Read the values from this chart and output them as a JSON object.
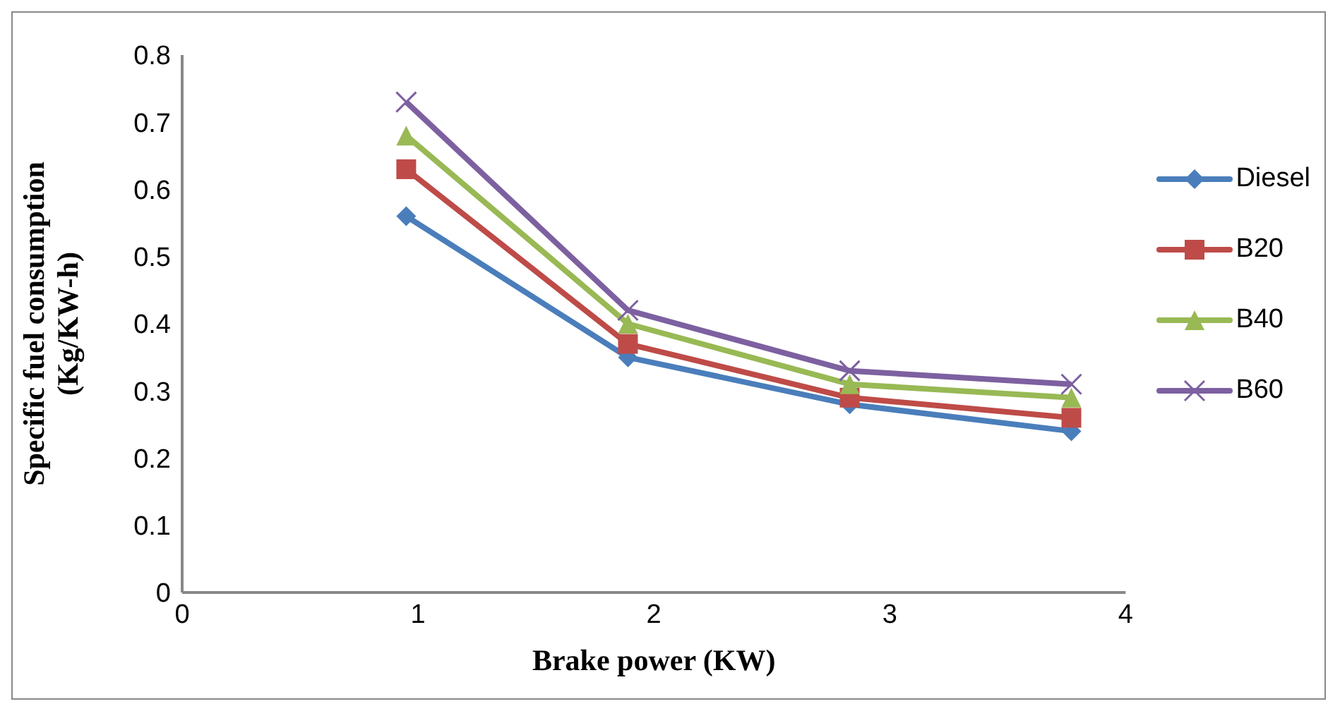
{
  "chart_data": {
    "type": "line",
    "xlabel": "Brake power (KW)",
    "ylabel": "Specific fuel consumption\n(Kg/KW-h)",
    "x": [
      0.95,
      1.89,
      2.83,
      3.77
    ],
    "series": [
      {
        "name": "Diesel",
        "color": "#4a7ebb",
        "marker": "diamond",
        "values": [
          0.56,
          0.35,
          0.28,
          0.24
        ]
      },
      {
        "name": "B20",
        "color": "#be4b48",
        "marker": "square",
        "values": [
          0.63,
          0.37,
          0.29,
          0.26
        ]
      },
      {
        "name": "B40",
        "color": "#98b954",
        "marker": "triangle",
        "values": [
          0.68,
          0.4,
          0.31,
          0.29
        ]
      },
      {
        "name": "B60",
        "color": "#7d60a0",
        "marker": "cross",
        "values": [
          0.73,
          0.42,
          0.33,
          0.31
        ]
      }
    ],
    "xlim": [
      0,
      4
    ],
    "xticks": [
      0,
      1,
      2,
      3,
      4
    ],
    "ylim": [
      0,
      0.8
    ],
    "yticks": [
      0,
      0.1,
      0.2,
      0.3,
      0.4,
      0.5,
      0.6,
      0.7,
      0.8
    ],
    "grid": false,
    "legend": "right",
    "line_style": "solid"
  }
}
